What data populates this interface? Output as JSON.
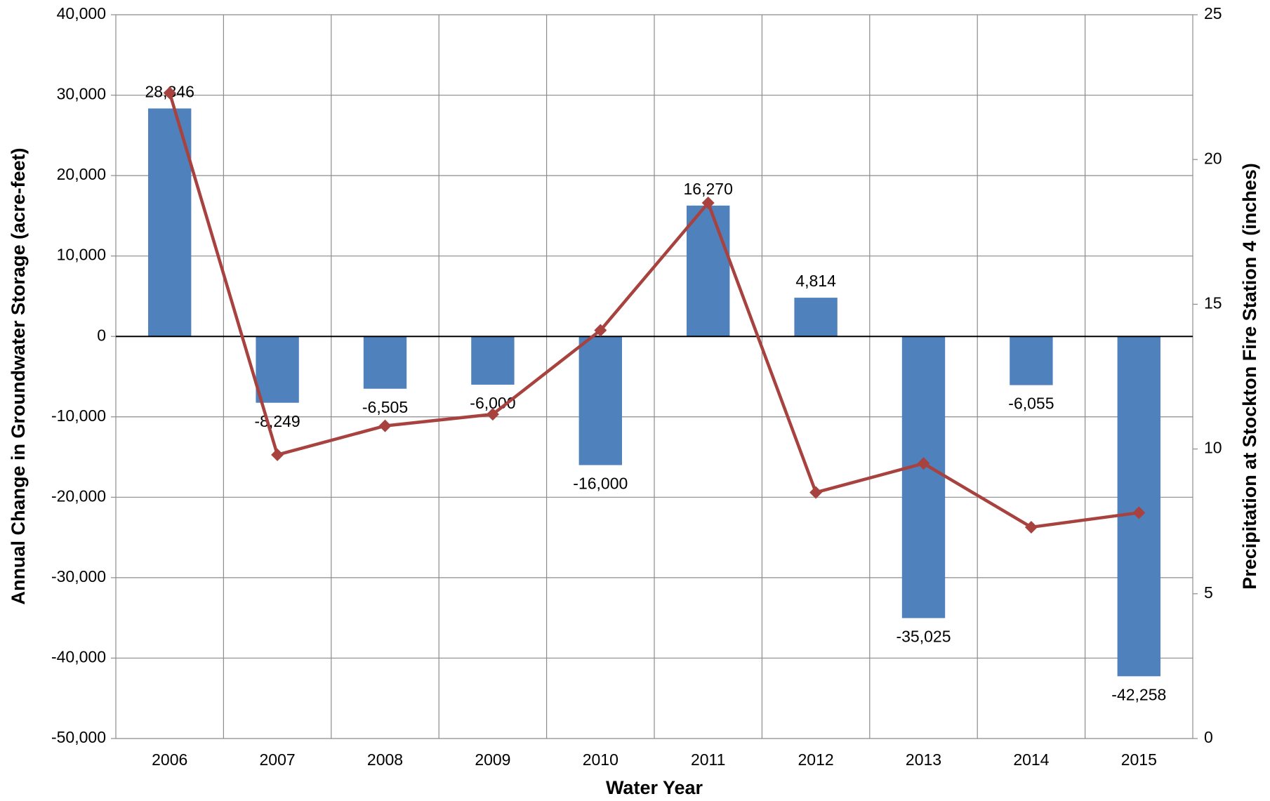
{
  "chart_data": {
    "type": "bar",
    "x_label": "Water Year",
    "y_label": "Annual Change in Groundwater Storage (acre-feet)",
    "y2_label": "Precipitation at Stockton Fire Station 4 (inches)",
    "categories": [
      "2006",
      "2007",
      "2008",
      "2009",
      "2010",
      "2011",
      "2012",
      "2013",
      "2014",
      "2015"
    ],
    "series": [
      {
        "type": "bar",
        "color": "#4f81bd",
        "values": [
          28346,
          -8249,
          -6505,
          -6000,
          -16000,
          16270,
          4814,
          -35025,
          -6055,
          -42258
        ],
        "value_labels": [
          "28,346",
          "-8,249",
          "-6,505",
          "-6,000",
          "-16,000",
          "16,270",
          "4,814",
          "-35,025",
          "-6,055",
          "-42,258"
        ]
      },
      {
        "type": "line",
        "axis": "y2",
        "color": "#a8423f",
        "values": [
          22.3,
          9.8,
          10.8,
          11.2,
          14.1,
          18.5,
          8.5,
          9.5,
          7.3,
          7.8
        ]
      }
    ],
    "ylim": [
      -50000,
      40000
    ],
    "yticks": [
      {
        "value": -50000,
        "label": "-50,000"
      },
      {
        "value": -40000,
        "label": "-40,000"
      },
      {
        "value": -30000,
        "label": "-30,000"
      },
      {
        "value": -20000,
        "label": "-20,000"
      },
      {
        "value": -10000,
        "label": "-10,000"
      },
      0,
      {
        "value": 10000,
        "label": "10,000"
      },
      {
        "value": 20000,
        "label": "20,000"
      },
      {
        "value": 30000,
        "label": "30,000"
      },
      {
        "value": 40000,
        "label": "40,000"
      }
    ],
    "y2lim": [
      0,
      25
    ],
    "y2ticks": [
      0,
      5,
      10,
      15,
      20,
      25
    ],
    "grid": true
  }
}
